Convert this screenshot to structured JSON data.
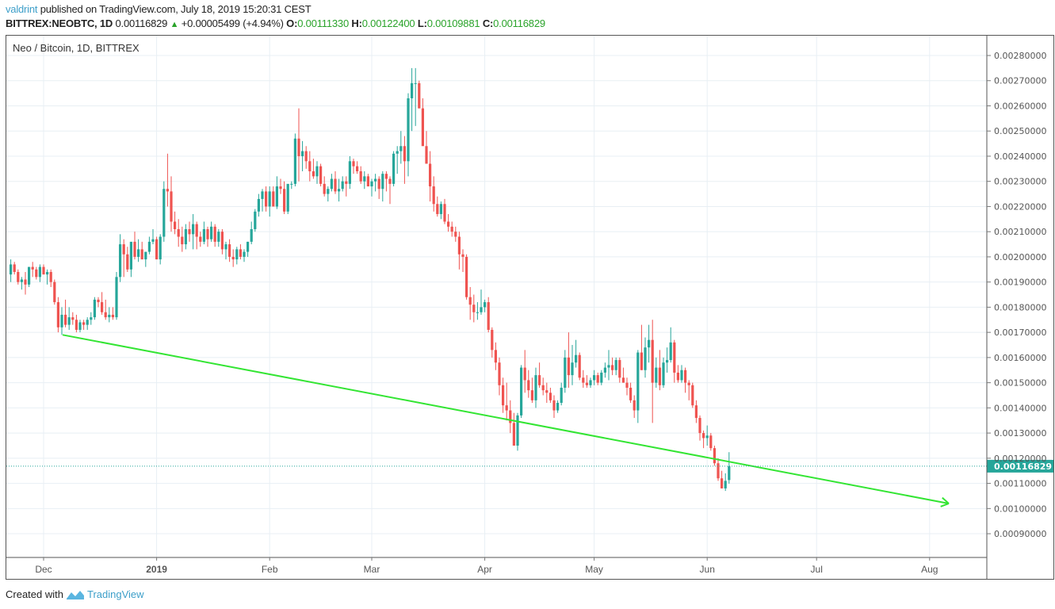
{
  "header": {
    "author": "valdrint",
    "published_text": "published on TradingView.com, July 18, 2019 15:20:31 CEST",
    "symbol": "BITTREX:NEOBTC, 1D",
    "last_price": "0.00116829",
    "change": "+0.00005499 (+4.94%)",
    "open_label": "O:",
    "open": "0.00111330",
    "high_label": "H:",
    "high": "0.00122400",
    "low_label": "L:",
    "low": "0.00109881",
    "close_label": "C:",
    "close": "0.00116829"
  },
  "legend": {
    "title": "Neo / Bitcoin, 1D, BITTREX"
  },
  "footer": {
    "created_with": "Created with",
    "brand": "TradingView"
  },
  "colors": {
    "up": "#26a69a",
    "down": "#ef5350",
    "trendline": "#33e533",
    "grid": "#e8eff4",
    "price_label_bg": "#26a69a",
    "price_line": "#26a69a"
  },
  "chart_data": {
    "type": "candlestick",
    "title": "Neo / Bitcoin, 1D, BITTREX",
    "xlabel": "",
    "ylabel": "",
    "ylim": [
      0.00085,
      0.00285
    ],
    "y_ticks": [
      "0.00280000",
      "0.00270000",
      "0.00260000",
      "0.00250000",
      "0.00240000",
      "0.00230000",
      "0.00220000",
      "0.00210000",
      "0.00200000",
      "0.00190000",
      "0.00180000",
      "0.00170000",
      "0.00160000",
      "0.00150000",
      "0.00140000",
      "0.00130000",
      "0.00120000",
      "0.00110000",
      "0.00100000",
      "0.00090000"
    ],
    "x_ticks": [
      "Dec",
      "2019",
      "Feb",
      "Mar",
      "Apr",
      "May",
      "Jun",
      "Jul",
      "Aug"
    ],
    "current_price_label": "0.00116829",
    "trendline": {
      "start": {
        "date": "2018-12-07",
        "price": 0.00169
      },
      "end": {
        "date": "2019-08-08",
        "price": 0.00102
      },
      "arrow": true,
      "color": "#33e533"
    },
    "grid": true,
    "series_note": "Approximate daily OHLC read from pixels, 2018-11-20 to 2019-07-18",
    "start_date": "2018-11-20",
    "ohlc": [
      [
        0.00201,
        0.00203,
        0.00196,
        0.00199
      ],
      [
        0.00199,
        0.00201,
        0.00192,
        0.00193
      ],
      [
        0.00193,
        0.00199,
        0.0019,
        0.00197
      ],
      [
        0.00197,
        0.00198,
        0.00193,
        0.00194
      ],
      [
        0.00194,
        0.00195,
        0.00189,
        0.0019
      ],
      [
        0.0019,
        0.00192,
        0.00187,
        0.00191
      ],
      [
        0.00191,
        0.00194,
        0.00185,
        0.00189
      ],
      [
        0.00189,
        0.00196,
        0.00188,
        0.00196
      ],
      [
        0.00196,
        0.00198,
        0.00192,
        0.00195
      ],
      [
        0.00195,
        0.00196,
        0.00191,
        0.00192
      ],
      [
        0.00192,
        0.00197,
        0.0019,
        0.00196
      ],
      [
        0.00196,
        0.00197,
        0.00193,
        0.00193
      ],
      [
        0.00193,
        0.00195,
        0.00189,
        0.00194
      ],
      [
        0.00194,
        0.00195,
        0.00188,
        0.0019
      ],
      [
        0.0019,
        0.00191,
        0.00181,
        0.00182
      ],
      [
        0.00182,
        0.00184,
        0.0017,
        0.00172
      ],
      [
        0.00172,
        0.0018,
        0.00169,
        0.00177
      ],
      [
        0.00177,
        0.00183,
        0.00172,
        0.00173
      ],
      [
        0.00173,
        0.0018,
        0.00171,
        0.00176
      ],
      [
        0.00176,
        0.00178,
        0.00173,
        0.00175
      ],
      [
        0.00175,
        0.00177,
        0.0017,
        0.00171
      ],
      [
        0.00171,
        0.00175,
        0.0017,
        0.00174
      ],
      [
        0.00174,
        0.00175,
        0.00171,
        0.00173
      ],
      [
        0.00173,
        0.00176,
        0.00171,
        0.00175
      ],
      [
        0.00175,
        0.00178,
        0.00173,
        0.00176
      ],
      [
        0.00176,
        0.00184,
        0.00175,
        0.00183
      ],
      [
        0.00183,
        0.00184,
        0.0018,
        0.00182
      ],
      [
        0.00182,
        0.00186,
        0.00177,
        0.00178
      ],
      [
        0.00178,
        0.00183,
        0.00175,
        0.00176
      ],
      [
        0.00176,
        0.0018,
        0.00174,
        0.00177
      ],
      [
        0.00177,
        0.0018,
        0.00175,
        0.00176
      ],
      [
        0.00176,
        0.00194,
        0.00175,
        0.00192
      ],
      [
        0.00192,
        0.00209,
        0.0019,
        0.00205
      ],
      [
        0.00205,
        0.00207,
        0.00192,
        0.00201
      ],
      [
        0.00201,
        0.00204,
        0.00194,
        0.00195
      ],
      [
        0.00195,
        0.00205,
        0.00192,
        0.00206
      ],
      [
        0.00206,
        0.0021,
        0.00199,
        0.002
      ],
      [
        0.002,
        0.00207,
        0.00198,
        0.00203
      ],
      [
        0.00203,
        0.00206,
        0.00199,
        0.00199
      ],
      [
        0.00199,
        0.00202,
        0.00196,
        0.00202
      ],
      [
        0.00202,
        0.00208,
        0.00201,
        0.00206
      ],
      [
        0.00206,
        0.00211,
        0.00205,
        0.00207
      ],
      [
        0.00207,
        0.00208,
        0.00199,
        0.00199
      ],
      [
        0.00199,
        0.00209,
        0.00197,
        0.00208
      ],
      [
        0.00208,
        0.0023,
        0.00206,
        0.00227
      ],
      [
        0.00227,
        0.00241,
        0.0022,
        0.00226
      ],
      [
        0.00226,
        0.00232,
        0.0021,
        0.00214
      ],
      [
        0.00214,
        0.00218,
        0.00209,
        0.00211
      ],
      [
        0.00211,
        0.00215,
        0.00204,
        0.00208
      ],
      [
        0.00208,
        0.00212,
        0.00202,
        0.00205
      ],
      [
        0.00205,
        0.00213,
        0.00203,
        0.00211
      ],
      [
        0.00211,
        0.00214,
        0.00206,
        0.00209
      ],
      [
        0.00209,
        0.00217,
        0.00203,
        0.00213
      ],
      [
        0.00213,
        0.00214,
        0.00203,
        0.00208
      ],
      [
        0.00208,
        0.0021,
        0.00204,
        0.00206
      ],
      [
        0.00206,
        0.00214,
        0.00205,
        0.00211
      ],
      [
        0.00211,
        0.00212,
        0.00204,
        0.00207
      ],
      [
        0.00207,
        0.00214,
        0.00206,
        0.00212
      ],
      [
        0.00212,
        0.00213,
        0.00204,
        0.00206
      ],
      [
        0.00206,
        0.00211,
        0.00204,
        0.0021
      ],
      [
        0.0021,
        0.00211,
        0.00201,
        0.00203
      ],
      [
        0.00203,
        0.00206,
        0.00199,
        0.00205
      ],
      [
        0.00205,
        0.00207,
        0.00198,
        0.002
      ],
      [
        0.002,
        0.00203,
        0.00196,
        0.00199
      ],
      [
        0.00199,
        0.00204,
        0.00197,
        0.00203
      ],
      [
        0.00203,
        0.00205,
        0.00199,
        0.002
      ],
      [
        0.002,
        0.00203,
        0.00198,
        0.00202
      ],
      [
        0.00202,
        0.00206,
        0.002,
        0.00206
      ],
      [
        0.00206,
        0.00214,
        0.00205,
        0.00211
      ],
      [
        0.00211,
        0.00219,
        0.0021,
        0.00218
      ],
      [
        0.00218,
        0.00225,
        0.00216,
        0.00223
      ],
      [
        0.00223,
        0.00227,
        0.00218,
        0.00226
      ],
      [
        0.00226,
        0.00228,
        0.00218,
        0.0022
      ],
      [
        0.0022,
        0.00228,
        0.00216,
        0.00226
      ],
      [
        0.00226,
        0.00228,
        0.0022,
        0.0022
      ],
      [
        0.0022,
        0.00232,
        0.00219,
        0.00228
      ],
      [
        0.00228,
        0.00231,
        0.00225,
        0.00227
      ],
      [
        0.00227,
        0.0023,
        0.00217,
        0.00218
      ],
      [
        0.00218,
        0.00228,
        0.00217,
        0.00229
      ],
      [
        0.00229,
        0.0023,
        0.00227,
        0.00229
      ],
      [
        0.00229,
        0.00249,
        0.00228,
        0.00247
      ],
      [
        0.00247,
        0.00259,
        0.0023,
        0.0024
      ],
      [
        0.0024,
        0.00246,
        0.00234,
        0.00242
      ],
      [
        0.00242,
        0.00244,
        0.00235,
        0.00238
      ],
      [
        0.00238,
        0.00242,
        0.0023,
        0.00234
      ],
      [
        0.00234,
        0.00239,
        0.00231,
        0.00232
      ],
      [
        0.00232,
        0.00238,
        0.00229,
        0.00236
      ],
      [
        0.00236,
        0.00237,
        0.00228,
        0.00229
      ],
      [
        0.00229,
        0.00232,
        0.00224,
        0.00225
      ],
      [
        0.00225,
        0.00228,
        0.00222,
        0.00227
      ],
      [
        0.00227,
        0.00233,
        0.00226,
        0.00231
      ],
      [
        0.00231,
        0.00234,
        0.00225,
        0.00226
      ],
      [
        0.00226,
        0.00231,
        0.00222,
        0.00227
      ],
      [
        0.00227,
        0.00232,
        0.00226,
        0.0023
      ],
      [
        0.0023,
        0.00232,
        0.00224,
        0.00229
      ],
      [
        0.00229,
        0.0024,
        0.00227,
        0.00238
      ],
      [
        0.00238,
        0.00239,
        0.00233,
        0.00236
      ],
      [
        0.00236,
        0.00238,
        0.00233,
        0.00234
      ],
      [
        0.00234,
        0.00236,
        0.00229,
        0.0023
      ],
      [
        0.0023,
        0.00234,
        0.00227,
        0.00232
      ],
      [
        0.00232,
        0.00233,
        0.00228,
        0.00228
      ],
      [
        0.00228,
        0.00231,
        0.00224,
        0.0023
      ],
      [
        0.0023,
        0.00233,
        0.00226,
        0.00231
      ],
      [
        0.00231,
        0.00232,
        0.00223,
        0.00227
      ],
      [
        0.00227,
        0.00234,
        0.00222,
        0.00233
      ],
      [
        0.00233,
        0.00234,
        0.00226,
        0.00231
      ],
      [
        0.00231,
        0.00232,
        0.00221,
        0.00229
      ],
      [
        0.00229,
        0.00242,
        0.00228,
        0.00241
      ],
      [
        0.00241,
        0.00244,
        0.00233,
        0.00242
      ],
      [
        0.00242,
        0.0025,
        0.00237,
        0.00244
      ],
      [
        0.00244,
        0.00248,
        0.00229,
        0.00238
      ],
      [
        0.00238,
        0.00265,
        0.00232,
        0.00263
      ],
      [
        0.00263,
        0.00275,
        0.0025,
        0.00269
      ],
      [
        0.00269,
        0.00275,
        0.00252,
        0.00269
      ],
      [
        0.00269,
        0.0027,
        0.00259,
        0.00259
      ],
      [
        0.00259,
        0.00263,
        0.0025,
        0.00244
      ],
      [
        0.00244,
        0.0025,
        0.0024,
        0.00237
      ],
      [
        0.00237,
        0.00242,
        0.00222,
        0.00228
      ],
      [
        0.00228,
        0.00232,
        0.00218,
        0.00221
      ],
      [
        0.00221,
        0.00224,
        0.00216,
        0.00217
      ],
      [
        0.00217,
        0.00222,
        0.00215,
        0.00221
      ],
      [
        0.00221,
        0.00223,
        0.00213,
        0.00214
      ],
      [
        0.00214,
        0.00217,
        0.0021,
        0.00212
      ],
      [
        0.00212,
        0.00214,
        0.00208,
        0.0021
      ],
      [
        0.0021,
        0.00212,
        0.00206,
        0.00208
      ],
      [
        0.00208,
        0.0021,
        0.00195,
        0.00201
      ],
      [
        0.00201,
        0.00203,
        0.00194,
        0.002
      ],
      [
        0.002,
        0.00201,
        0.00183,
        0.00184
      ],
      [
        0.00184,
        0.00188,
        0.00175,
        0.00181
      ],
      [
        0.00181,
        0.00185,
        0.00174,
        0.00178
      ],
      [
        0.00178,
        0.00182,
        0.00175,
        0.00178
      ],
      [
        0.00178,
        0.00187,
        0.00177,
        0.0018
      ],
      [
        0.0018,
        0.00183,
        0.00178,
        0.00182
      ],
      [
        0.00182,
        0.00184,
        0.0017,
        0.00171
      ],
      [
        0.00171,
        0.00172,
        0.0016,
        0.00163
      ],
      [
        0.00163,
        0.00166,
        0.00155,
        0.00158
      ],
      [
        0.00158,
        0.0016,
        0.00145,
        0.00149
      ],
      [
        0.00149,
        0.00152,
        0.00138,
        0.00141
      ],
      [
        0.00141,
        0.0015,
        0.00135,
        0.00139
      ],
      [
        0.00139,
        0.00143,
        0.0013,
        0.00134
      ],
      [
        0.00134,
        0.00138,
        0.00125,
        0.00125
      ],
      [
        0.00125,
        0.00138,
        0.00123,
        0.00137
      ],
      [
        0.00137,
        0.00157,
        0.00136,
        0.00156
      ],
      [
        0.00156,
        0.00163,
        0.00146,
        0.00151
      ],
      [
        0.00151,
        0.00155,
        0.00144,
        0.00147
      ],
      [
        0.00147,
        0.00152,
        0.00142,
        0.00143
      ],
      [
        0.00143,
        0.00156,
        0.0014,
        0.00153
      ],
      [
        0.00153,
        0.00158,
        0.00148,
        0.00149
      ],
      [
        0.00149,
        0.00152,
        0.00145,
        0.00147
      ],
      [
        0.00147,
        0.0015,
        0.00142,
        0.00146
      ],
      [
        0.00146,
        0.00148,
        0.00142,
        0.00143
      ],
      [
        0.00143,
        0.00145,
        0.00136,
        0.00139
      ],
      [
        0.00139,
        0.00143,
        0.00138,
        0.00142
      ],
      [
        0.00142,
        0.0015,
        0.00141,
        0.00148
      ],
      [
        0.00148,
        0.00163,
        0.00146,
        0.0016
      ],
      [
        0.0016,
        0.0017,
        0.00148,
        0.00153
      ],
      [
        0.00153,
        0.00165,
        0.00149,
        0.00158
      ],
      [
        0.00158,
        0.00167,
        0.00156,
        0.00161
      ],
      [
        0.00161,
        0.00162,
        0.00151,
        0.00152
      ],
      [
        0.00152,
        0.00155,
        0.00148,
        0.0015
      ],
      [
        0.0015,
        0.00153,
        0.00148,
        0.00149
      ],
      [
        0.00149,
        0.00152,
        0.00148,
        0.00151
      ],
      [
        0.00151,
        0.00155,
        0.00149,
        0.00153
      ],
      [
        0.00153,
        0.00154,
        0.00149,
        0.0015
      ],
      [
        0.0015,
        0.00155,
        0.00149,
        0.00154
      ],
      [
        0.00154,
        0.00158,
        0.00152,
        0.00156
      ],
      [
        0.00156,
        0.00163,
        0.00151,
        0.00157
      ],
      [
        0.00157,
        0.0016,
        0.00153,
        0.00155
      ],
      [
        0.00155,
        0.0016,
        0.00153,
        0.00159
      ],
      [
        0.00159,
        0.0016,
        0.0015,
        0.00152
      ],
      [
        0.00152,
        0.00156,
        0.0015,
        0.0015
      ],
      [
        0.0015,
        0.00152,
        0.00145,
        0.00148
      ],
      [
        0.00148,
        0.0015,
        0.00142,
        0.00143
      ],
      [
        0.00143,
        0.00145,
        0.00136,
        0.00139
      ],
      [
        0.00139,
        0.00163,
        0.00134,
        0.00162
      ],
      [
        0.00162,
        0.00173,
        0.00155,
        0.00155
      ],
      [
        0.00155,
        0.00168,
        0.00152,
        0.00164
      ],
      [
        0.00164,
        0.00173,
        0.00158,
        0.00167
      ],
      [
        0.00167,
        0.00175,
        0.00134,
        0.0015
      ],
      [
        0.0015,
        0.0016,
        0.00148,
        0.00156
      ],
      [
        0.00156,
        0.00163,
        0.00147,
        0.00149
      ],
      [
        0.00149,
        0.0016,
        0.00148,
        0.00158
      ],
      [
        0.00158,
        0.00164,
        0.00154,
        0.00159
      ],
      [
        0.00159,
        0.00172,
        0.00158,
        0.00166
      ],
      [
        0.00166,
        0.00167,
        0.0015,
        0.00154
      ],
      [
        0.00154,
        0.00157,
        0.0015,
        0.00151
      ],
      [
        0.00151,
        0.00157,
        0.0015,
        0.00155
      ],
      [
        0.00155,
        0.00156,
        0.00146,
        0.0015
      ],
      [
        0.0015,
        0.00151,
        0.00143,
        0.00149
      ],
      [
        0.00149,
        0.0015,
        0.0014,
        0.00141
      ],
      [
        0.00141,
        0.00143,
        0.00134,
        0.00136
      ],
      [
        0.00136,
        0.00137,
        0.00127,
        0.0013
      ],
      [
        0.0013,
        0.00131,
        0.00124,
        0.00128
      ],
      [
        0.00128,
        0.00133,
        0.00125,
        0.00129
      ],
      [
        0.00129,
        0.0013,
        0.00123,
        0.00124
      ],
      [
        0.00124,
        0.00125,
        0.00117,
        0.00118
      ],
      [
        0.00118,
        0.0012,
        0.00111,
        0.00112
      ],
      [
        0.00112,
        0.00115,
        0.00108,
        0.00108
      ],
      [
        0.00108,
        0.00114,
        0.00107,
        0.00111
      ],
      [
        0.0011133,
        0.001224,
        0.00109881,
        0.00116829
      ]
    ]
  }
}
